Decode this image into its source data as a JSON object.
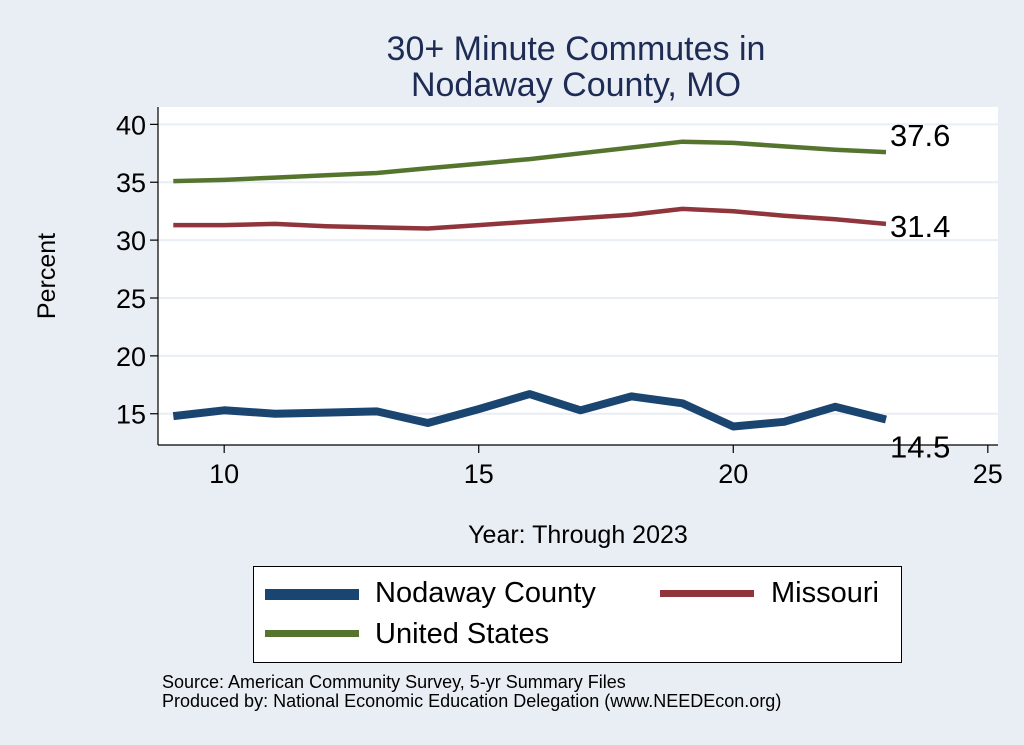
{
  "chart_data": {
    "type": "line",
    "title": [
      "30+ Minute Commutes in",
      "Nodaway County, MO"
    ],
    "xlabel": "Year: Through 2023",
    "ylabel": "Percent",
    "xlim": [
      8.7,
      25.2
    ],
    "ylim": [
      12.3,
      41.5
    ],
    "xticks": [
      10,
      15,
      20,
      25
    ],
    "yticks": [
      15,
      20,
      25,
      30,
      35,
      40
    ],
    "grid": true,
    "legend_position": "bottom",
    "series": [
      {
        "name": "Nodaway County",
        "color": "#1b4571",
        "x": [
          9,
          10,
          11,
          12,
          13,
          14,
          15,
          16,
          17,
          18,
          19,
          20,
          21,
          22,
          23
        ],
        "values": [
          14.8,
          15.3,
          15.0,
          15.1,
          15.2,
          14.2,
          15.4,
          16.7,
          15.3,
          16.5,
          15.9,
          13.9,
          14.3,
          15.6,
          14.5
        ],
        "end_label": "14.5"
      },
      {
        "name": "Missouri",
        "color": "#90353b",
        "x": [
          9,
          10,
          11,
          12,
          13,
          14,
          15,
          16,
          17,
          18,
          19,
          20,
          21,
          22,
          23
        ],
        "values": [
          31.3,
          31.3,
          31.4,
          31.2,
          31.1,
          31.0,
          31.3,
          31.6,
          31.9,
          32.2,
          32.7,
          32.5,
          32.1,
          31.8,
          31.4
        ],
        "end_label": "31.4"
      },
      {
        "name": "United States",
        "color": "#55752f",
        "x": [
          9,
          10,
          11,
          12,
          13,
          14,
          15,
          16,
          17,
          18,
          19,
          20,
          21,
          22,
          23
        ],
        "values": [
          35.1,
          35.2,
          35.4,
          35.6,
          35.8,
          36.2,
          36.6,
          37.0,
          37.5,
          38.0,
          38.5,
          38.4,
          38.1,
          37.8,
          37.6
        ],
        "end_label": "37.6"
      }
    ]
  },
  "legend": {
    "items": [
      {
        "label": "Nodaway County",
        "color": "#1b4571"
      },
      {
        "label": "Missouri",
        "color": "#90353b"
      },
      {
        "label": "United States",
        "color": "#55752f"
      }
    ]
  },
  "source": {
    "line1": "Source: American Community Survey, 5-yr Summary Files",
    "line2": "Produced by: National Economic Education Delegation (www.NEEDEcon.org)"
  }
}
